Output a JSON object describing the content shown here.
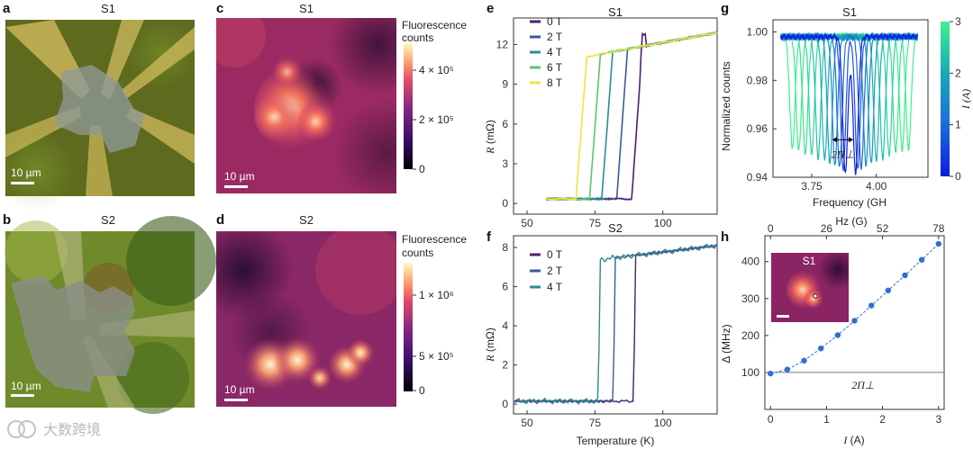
{
  "panels": {
    "a": {
      "label": "a",
      "title": "S1",
      "scale_bar": "10 µm"
    },
    "b": {
      "label": "b",
      "title": "S2",
      "scale_bar": "10 µm"
    },
    "c": {
      "label": "c",
      "title": "S1",
      "scale_bar": "10 µm",
      "colorbar_title_1": "Fluorescence",
      "colorbar_title_2": "counts",
      "colorbar_ticks": [
        "4 × 10⁵",
        "2 × 10⁵",
        "0"
      ]
    },
    "d": {
      "label": "d",
      "title": "S2",
      "scale_bar": "10 µm",
      "colorbar_title_1": "Fluorescence",
      "colorbar_title_2": "counts",
      "colorbar_ticks": [
        "1 × 10⁶",
        "5 × 10⁵",
        "0"
      ]
    },
    "h_inset": {
      "title": "S1"
    }
  },
  "colors": {
    "field_0T": "#4b1f6f",
    "field_2T": "#3b5b9a",
    "field_4T": "#2e8c8c",
    "field_6T": "#5fc46a",
    "field_8T": "#f0e340",
    "h_points": "#2f6fd0",
    "ref_line": "#777777"
  },
  "watermark": "大数跨境",
  "chart_data": [
    {
      "id": "e",
      "type": "line",
      "title": "S1",
      "panel_label": "e",
      "xlabel": "Temperature (K)",
      "ylabel": "R (mΩ)",
      "ylabel_var": "R",
      "ylabel_unit": " (mΩ)",
      "xlim": [
        45,
        120
      ],
      "ylim": [
        -0.8,
        14
      ],
      "xticks": [
        50,
        75,
        100
      ],
      "yticks": [
        0,
        3,
        6,
        9,
        12
      ],
      "series": [
        {
          "name": "0 T",
          "Tc": 91.5,
          "peak": true
        },
        {
          "name": "2 T",
          "Tc": 86.0,
          "peak": false
        },
        {
          "name": "4 T",
          "Tc": 80.5,
          "peak": false
        },
        {
          "name": "6 T",
          "Tc": 76.0,
          "peak": false
        },
        {
          "name": "8 T",
          "Tc": 71.0,
          "peak": false
        }
      ],
      "normal_state": {
        "R_at_75K": 11.2,
        "R_at_120K": 12.9,
        "R_low": 0.35
      }
    },
    {
      "id": "f",
      "type": "line",
      "title": "S2",
      "panel_label": "f",
      "xlabel": "Temperature (K)",
      "ylabel": "R (mΩ)",
      "ylabel_var": "R",
      "ylabel_unit": " (mΩ)",
      "xlim": [
        45,
        120
      ],
      "ylim": [
        -0.5,
        8.6
      ],
      "xticks": [
        50,
        75,
        100
      ],
      "yticks": [
        0,
        2,
        4,
        6,
        8
      ],
      "series": [
        {
          "name": "0 T",
          "Tc": 90.0
        },
        {
          "name": "2 T",
          "Tc": 82.5
        },
        {
          "name": "4 T",
          "Tc": 77.0
        }
      ],
      "normal_state": {
        "R_at_78K": 7.4,
        "R_at_120K": 8.1,
        "R_low": 0.15
      }
    },
    {
      "id": "g",
      "type": "line",
      "title": "S1",
      "panel_label": "g",
      "xlabel": "Frequency (GH",
      "ylabel": "Normalized counts",
      "xlim": [
        3.6,
        4.2
      ],
      "ylim": [
        0.94,
        1.005
      ],
      "xticks": [
        3.75,
        4.0
      ],
      "xtick_labels": [
        "3.75",
        "4.00"
      ],
      "yticks": [
        0.94,
        0.96,
        0.98,
        1.0
      ],
      "ytick_labels": [
        "0.94",
        "0.96",
        "0.98",
        "1.00"
      ],
      "colorbar_label": "I (A)",
      "colorbar_ticks": [
        "0",
        "1",
        "2",
        "3"
      ],
      "annotation": "2Π⊥",
      "resonance_pairs": [
        {
          "I": 0.0,
          "f1": 3.88,
          "f2": 3.92,
          "depth": 0.056
        },
        {
          "I": 0.3,
          "f1": 3.872,
          "f2": 3.928,
          "depth": 0.055
        },
        {
          "I": 0.6,
          "f1": 3.858,
          "f2": 3.942,
          "depth": 0.054
        },
        {
          "I": 0.9,
          "f1": 3.84,
          "f2": 3.96,
          "depth": 0.053
        },
        {
          "I": 1.2,
          "f1": 3.82,
          "f2": 3.98,
          "depth": 0.052
        },
        {
          "I": 1.5,
          "f1": 3.8,
          "f2": 4.0,
          "depth": 0.051
        },
        {
          "I": 1.8,
          "f1": 3.775,
          "f2": 4.025,
          "depth": 0.05
        },
        {
          "I": 2.1,
          "f1": 3.75,
          "f2": 4.05,
          "depth": 0.049
        },
        {
          "I": 2.4,
          "f1": 3.725,
          "f2": 4.075,
          "depth": 0.048
        },
        {
          "I": 2.7,
          "f1": 3.7,
          "f2": 4.1,
          "depth": 0.047
        },
        {
          "I": 3.0,
          "f1": 3.675,
          "f2": 4.125,
          "depth": 0.046
        }
      ]
    },
    {
      "id": "h",
      "type": "scatter",
      "panel_label": "h",
      "xlabel": "I (A)",
      "ylabel": "Δ (MHz)",
      "xlabel_var": "I",
      "xlabel_unit": " (A)",
      "top_xlabel": "Hz (G)",
      "top_xticks": [
        "0",
        "26",
        "52",
        "78"
      ],
      "xlim": [
        -0.1,
        3.1
      ],
      "ylim": [
        0,
        470
      ],
      "xticks": [
        0,
        1,
        2,
        3
      ],
      "yticks": [
        100,
        200,
        300,
        400
      ],
      "reference_line": {
        "y": 100,
        "label": "2Π⊥"
      },
      "points": [
        {
          "x": 0.0,
          "y": 97
        },
        {
          "x": 0.3,
          "y": 108
        },
        {
          "x": 0.6,
          "y": 132
        },
        {
          "x": 0.9,
          "y": 165
        },
        {
          "x": 1.2,
          "y": 201
        },
        {
          "x": 1.5,
          "y": 240
        },
        {
          "x": 1.8,
          "y": 281
        },
        {
          "x": 2.1,
          "y": 322
        },
        {
          "x": 2.4,
          "y": 363
        },
        {
          "x": 2.7,
          "y": 405
        },
        {
          "x": 3.0,
          "y": 448
        }
      ]
    }
  ]
}
